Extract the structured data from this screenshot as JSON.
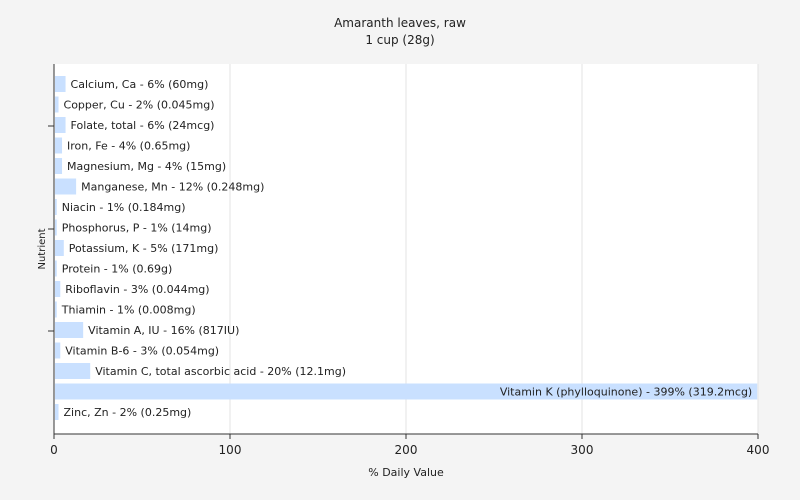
{
  "chart_data": {
    "type": "bar",
    "orientation": "horizontal",
    "title": "Amaranth leaves, raw",
    "subtitle": "1 cup (28g)",
    "xlabel": "% Daily Value",
    "ylabel": "Nutrient",
    "xlim": [
      0,
      400
    ],
    "xticks": [
      "0",
      "100",
      "200",
      "300",
      "400"
    ],
    "grid": true,
    "bar_color": "#c9e0ff",
    "categories": [
      "Calcium, Ca",
      "Copper, Cu",
      "Folate, total",
      "Iron, Fe",
      "Magnesium, Mg",
      "Manganese, Mn",
      "Niacin",
      "Phosphorus, P",
      "Potassium, K",
      "Protein",
      "Riboflavin",
      "Thiamin",
      "Vitamin A, IU",
      "Vitamin B-6",
      "Vitamin C, total ascorbic acid",
      "Vitamin K (phylloquinone)",
      "Zinc, Zn"
    ],
    "values": [
      6,
      2,
      6,
      4,
      4,
      12,
      1,
      1,
      5,
      1,
      3,
      1,
      16,
      3,
      20,
      399,
      2
    ],
    "labels": [
      "Calcium, Ca - 6% (60mg)",
      "Copper, Cu - 2% (0.045mg)",
      "Folate, total - 6% (24mcg)",
      "Iron, Fe - 4% (0.65mg)",
      "Magnesium, Mg - 4% (15mg)",
      "Manganese, Mn - 12% (0.248mg)",
      "Niacin - 1% (0.184mg)",
      "Phosphorus, P - 1% (14mg)",
      "Potassium, K - 5% (171mg)",
      "Protein - 1% (0.69g)",
      "Riboflavin - 3% (0.044mg)",
      "Thiamin - 1% (0.008mg)",
      "Vitamin A, IU - 16% (817IU)",
      "Vitamin B-6 - 3% (0.054mg)",
      "Vitamin C, total ascorbic acid - 20% (12.1mg)",
      "Vitamin K (phylloquinone) - 399% (319.2mcg)",
      "Zinc, Zn - 2% (0.25mg)"
    ]
  }
}
